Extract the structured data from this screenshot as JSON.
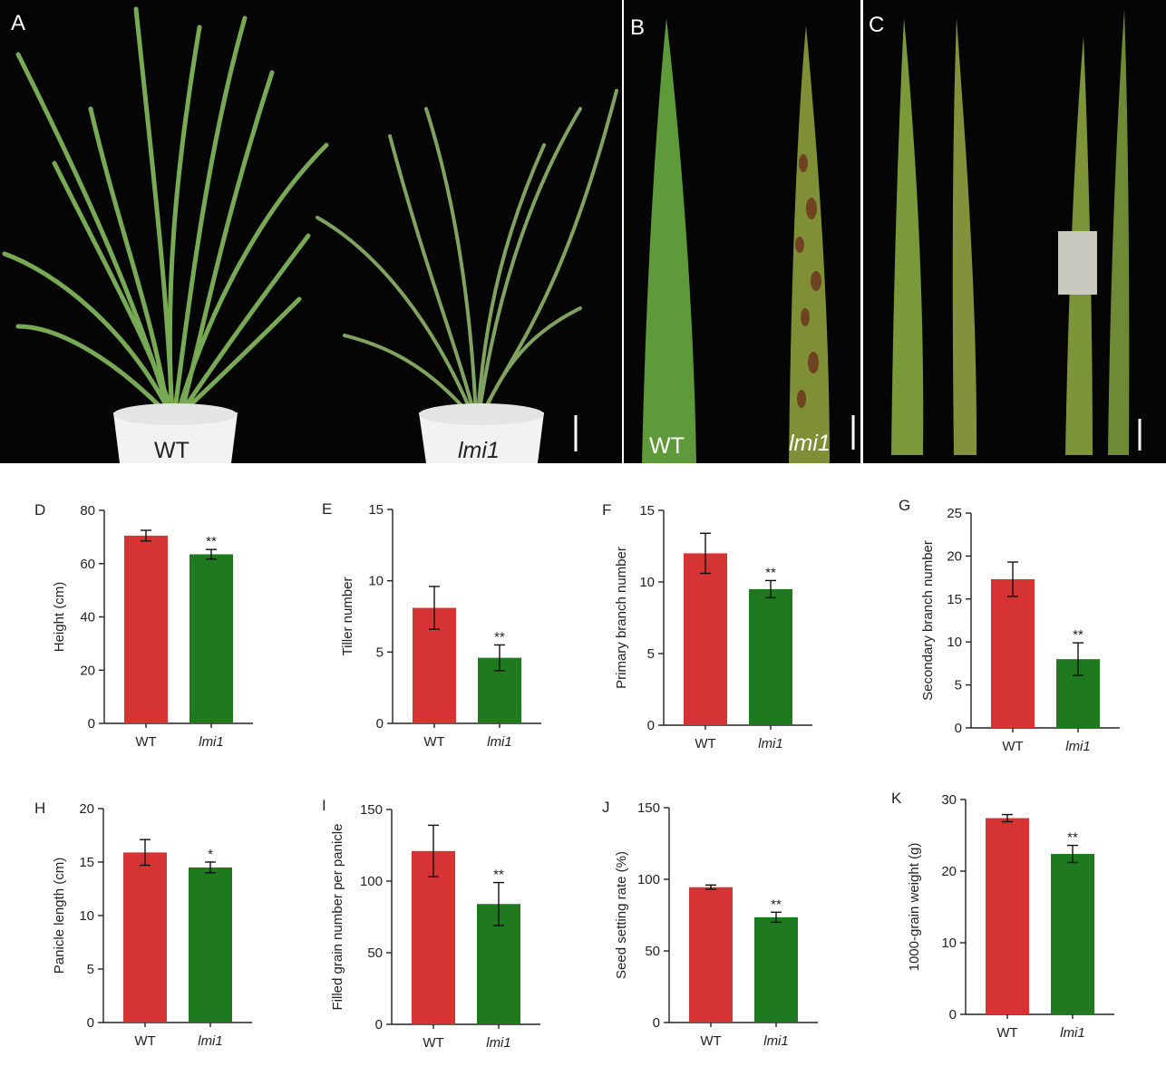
{
  "photos": [
    {
      "letter": "A",
      "labels": [
        "WT",
        "lmi1"
      ]
    },
    {
      "letter": "B",
      "labels": [
        "WT",
        "lmi1"
      ]
    },
    {
      "letter": "C",
      "labels": []
    }
  ],
  "colors": {
    "wt": "#d63434",
    "lmi1": "#1f7a1f",
    "photo_bg": "#050505"
  },
  "chart_data": [
    {
      "panel": "D",
      "type": "bar",
      "categories": [
        "WT",
        "lmi1"
      ],
      "values": [
        70.5,
        63.5
      ],
      "errors": [
        2,
        1.8
      ],
      "ylabel": "Height (cm)",
      "ylim": [
        0,
        80
      ],
      "yticks": [
        0,
        20,
        40,
        60,
        80
      ],
      "significance": [
        "",
        "**"
      ]
    },
    {
      "panel": "E",
      "type": "bar",
      "categories": [
        "WT",
        "lmi1"
      ],
      "values": [
        8.1,
        4.6
      ],
      "errors": [
        1.5,
        0.9
      ],
      "ylabel": "Tiller number",
      "ylim": [
        0,
        15
      ],
      "yticks": [
        0,
        5,
        10,
        15
      ],
      "significance": [
        "",
        "**"
      ]
    },
    {
      "panel": "F",
      "type": "bar",
      "categories": [
        "WT",
        "lmi1"
      ],
      "values": [
        12.0,
        9.5
      ],
      "errors": [
        1.4,
        0.6
      ],
      "ylabel": "Primary branch number",
      "ylim": [
        0,
        15
      ],
      "yticks": [
        0,
        5,
        10,
        15
      ],
      "significance": [
        "",
        "**"
      ]
    },
    {
      "panel": "G",
      "type": "bar",
      "categories": [
        "WT",
        "lmi1"
      ],
      "values": [
        17.3,
        8.0
      ],
      "errors": [
        2,
        1.9
      ],
      "ylabel": "Secondary branch number",
      "ylim": [
        0,
        25
      ],
      "yticks": [
        0,
        5,
        10,
        15,
        20,
        25
      ],
      "significance": [
        "",
        "**"
      ]
    },
    {
      "panel": "H",
      "type": "bar",
      "categories": [
        "WT",
        "lmi1"
      ],
      "values": [
        15.9,
        14.5
      ],
      "errors": [
        1.2,
        0.5
      ],
      "ylabel": "Panicle length (cm)",
      "ylim": [
        0,
        20
      ],
      "yticks": [
        0,
        5,
        10,
        15,
        20
      ],
      "significance": [
        "",
        "*"
      ]
    },
    {
      "panel": "I",
      "type": "bar",
      "categories": [
        "WT",
        "lmi1"
      ],
      "values": [
        121,
        84
      ],
      "errors": [
        18,
        15
      ],
      "ylabel": "Filled grain number per panicle",
      "ylim": [
        0,
        150
      ],
      "yticks": [
        0,
        50,
        100,
        150
      ],
      "significance": [
        "",
        "**"
      ]
    },
    {
      "panel": "J",
      "type": "bar",
      "categories": [
        "WT",
        "lmi1"
      ],
      "values": [
        94.5,
        73.5
      ],
      "errors": [
        1.5,
        3.5
      ],
      "ylabel": "Seed setting rate (%)",
      "ylim": [
        0,
        150
      ],
      "yticks": [
        0,
        50,
        100,
        150
      ],
      "significance": [
        "",
        "**"
      ]
    },
    {
      "panel": "K",
      "type": "bar",
      "categories": [
        "WT",
        "lmi1"
      ],
      "values": [
        27.4,
        22.4
      ],
      "errors": [
        0.5,
        1.2
      ],
      "ylabel": "1000-grain weight (g)",
      "ylim": [
        0,
        30
      ],
      "yticks": [
        0,
        10,
        20,
        30
      ],
      "significance": [
        "",
        "**"
      ]
    }
  ]
}
